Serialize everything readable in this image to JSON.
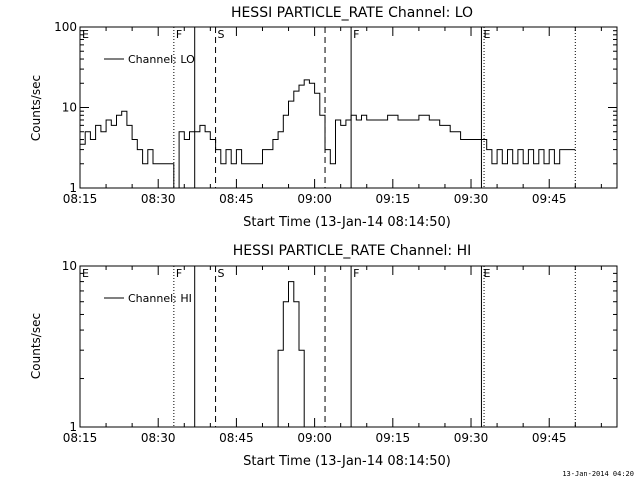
{
  "footer_text": "13-Jan-2014 04:20",
  "chart_data": [
    {
      "type": "line",
      "title": "HESSI PARTICLE_RATE Channel: LO",
      "xlabel": "Start Time (13-Jan-14 08:14:50)",
      "ylabel": "Counts/sec",
      "yscale": "log",
      "ylim": [
        1,
        100
      ],
      "xlim": [
        "08:15",
        "09:58"
      ],
      "x_ticks": [
        "08:15",
        "08:30",
        "08:45",
        "09:00",
        "09:15",
        "09:30",
        "09:45"
      ],
      "y_ticks": [
        "1",
        "10",
        "100"
      ],
      "legend": "Channel: LO",
      "legend_position": "top-left",
      "markers": [
        {
          "label": "E",
          "time": "08:15",
          "style": "none"
        },
        {
          "label": "F",
          "time": "08:33",
          "style": "dotted"
        },
        {
          "label": "",
          "time": "08:37",
          "style": "solid"
        },
        {
          "label": "S",
          "time": "08:41",
          "style": "dashed"
        },
        {
          "label": "",
          "time": "09:02",
          "style": "dashed"
        },
        {
          "label": "F",
          "time": "09:07",
          "style": "solid"
        },
        {
          "label": "E",
          "time": "09:32",
          "style": "solid"
        },
        {
          "label": "",
          "time": "09:32.5",
          "style": "dotted"
        },
        {
          "label": "",
          "time": "09:50",
          "style": "dotted"
        }
      ],
      "series": [
        {
          "x": [
            "08:15",
            "08:16",
            "08:17",
            "08:18",
            "08:19",
            "08:20",
            "08:21",
            "08:22",
            "08:23",
            "08:24",
            "08:25",
            "08:26",
            "08:27",
            "08:28",
            "08:29",
            "08:30",
            "08:31",
            "08:32",
            "08:33",
            "08:34",
            "08:35",
            "08:36",
            "08:37",
            "08:38",
            "08:39",
            "08:40",
            "08:41",
            "08:42",
            "08:43",
            "08:44",
            "08:45",
            "08:46",
            "08:47",
            "08:48",
            "08:49",
            "08:50",
            "08:51",
            "08:52",
            "08:53",
            "08:54",
            "08:55",
            "08:56",
            "08:57",
            "08:58",
            "08:59",
            "09:00",
            "09:01",
            "09:02",
            "09:03",
            "09:04",
            "09:05",
            "09:06",
            "09:07",
            "09:08",
            "09:09",
            "09:10",
            "09:12",
            "09:14",
            "09:16",
            "09:18",
            "09:20",
            "09:22",
            "09:24",
            "09:26",
            "09:28",
            "09:30",
            "09:32",
            "09:33",
            "09:34",
            "09:35",
            "09:36",
            "09:37",
            "09:38",
            "09:39",
            "09:40",
            "09:41",
            "09:42",
            "09:43",
            "09:44",
            "09:45",
            "09:46",
            "09:47",
            "09:48",
            "09:49",
            "09:50"
          ],
          "values": [
            3.5,
            5,
            4,
            6,
            5,
            7,
            6,
            8,
            9,
            6,
            4,
            3,
            2,
            3,
            2,
            2,
            2,
            2,
            1,
            5,
            4,
            5,
            5,
            6,
            5,
            4,
            3,
            2,
            3,
            2,
            3,
            2,
            2,
            2,
            2,
            3,
            3,
            4,
            5,
            8,
            12,
            16,
            19,
            22,
            20,
            15,
            8,
            3,
            2,
            7,
            6,
            7,
            8,
            7,
            8,
            7,
            7,
            8,
            7,
            7,
            8,
            7,
            6,
            5,
            4,
            4,
            4,
            3,
            2,
            3,
            2,
            3,
            2,
            3,
            2,
            3,
            2,
            3,
            2,
            3,
            2,
            3,
            3,
            3,
            3
          ]
        }
      ]
    },
    {
      "type": "line",
      "title": "HESSI PARTICLE_RATE Channel: HI",
      "xlabel": "Start Time (13-Jan-14 08:14:50)",
      "ylabel": "Counts/sec",
      "yscale": "log",
      "ylim": [
        1,
        10
      ],
      "xlim": [
        "08:15",
        "09:58"
      ],
      "x_ticks": [
        "08:15",
        "08:30",
        "08:45",
        "09:00",
        "09:15",
        "09:30",
        "09:45"
      ],
      "y_ticks": [
        "1",
        "10"
      ],
      "legend": "Channel: HI",
      "legend_position": "top-left",
      "markers": [
        {
          "label": "E",
          "time": "08:15",
          "style": "none"
        },
        {
          "label": "F",
          "time": "08:33",
          "style": "dotted"
        },
        {
          "label": "",
          "time": "08:37",
          "style": "solid"
        },
        {
          "label": "S",
          "time": "08:41",
          "style": "dashed"
        },
        {
          "label": "",
          "time": "09:02",
          "style": "dashed"
        },
        {
          "label": "F",
          "time": "09:07",
          "style": "solid"
        },
        {
          "label": "E",
          "time": "09:32",
          "style": "solid"
        },
        {
          "label": "",
          "time": "09:32.5",
          "style": "dotted"
        },
        {
          "label": "",
          "time": "09:50",
          "style": "dotted"
        }
      ],
      "series": [
        {
          "x": [
            "08:52",
            "08:53",
            "08:54",
            "08:55",
            "08:56",
            "08:57",
            "08:58"
          ],
          "values": [
            1,
            3,
            6,
            8,
            6,
            3,
            1
          ]
        }
      ]
    }
  ]
}
